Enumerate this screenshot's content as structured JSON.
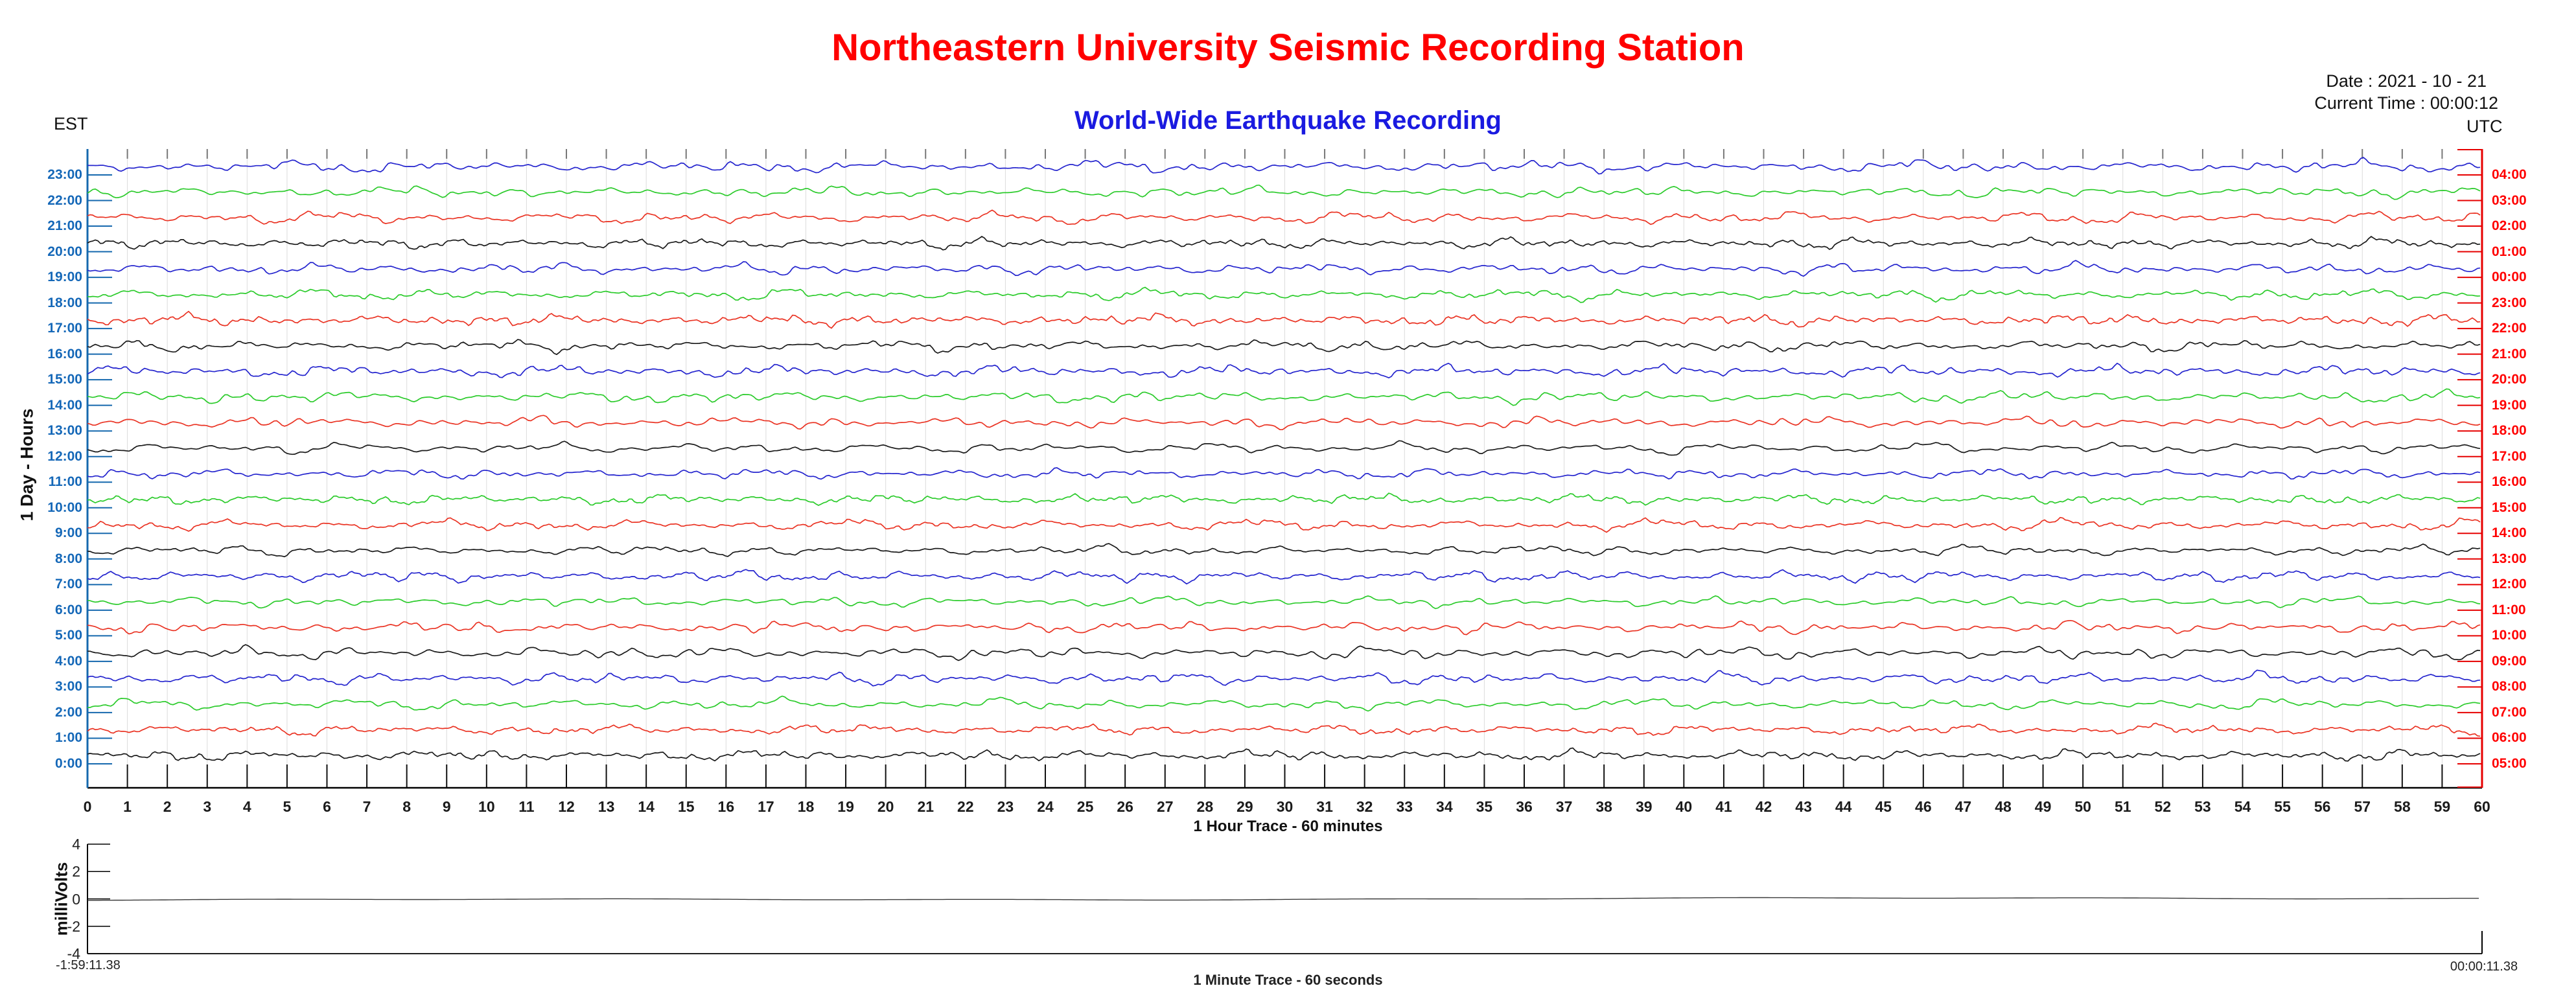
{
  "header": {
    "title": "Northeastern University Seismic Recording Station",
    "subtitle": "World-Wide Earthquake Recording",
    "date": "Date : 2021 - 10 - 21",
    "current_time": "Current Time : 00:00:12",
    "left_timezone": "EST",
    "right_timezone": "UTC"
  },
  "colors": {
    "title": "#FF0000",
    "subtitle": "#1A1AE0",
    "est_labels": "#1568B8",
    "utc_labels": "#FF0000",
    "left_axis": "#1568AE",
    "right_axis": "#E60000",
    "grid": "#DCDCDC",
    "top_tick": "#777777",
    "bottom_tick": "#111111",
    "trace_blue": "#2424CE",
    "trace_green": "#2BCB2B",
    "trace_red": "#EA3323",
    "trace_black": "#1A1A1A"
  },
  "chart_data": [
    {
      "id": "helicorder",
      "type": "line",
      "title": "World-Wide Earthquake Recording",
      "xlabel": "1 Hour Trace - 60 minutes",
      "ylabel": "1 Day - Hours",
      "xlim": [
        0,
        60
      ],
      "x_ticks": [
        0,
        1,
        2,
        3,
        4,
        5,
        6,
        7,
        8,
        9,
        10,
        11,
        12,
        13,
        14,
        15,
        16,
        17,
        18,
        19,
        20,
        21,
        22,
        23,
        24,
        25,
        26,
        27,
        28,
        29,
        30,
        31,
        32,
        33,
        34,
        35,
        36,
        37,
        38,
        39,
        40,
        41,
        42,
        43,
        44,
        45,
        46,
        47,
        48,
        49,
        50,
        51,
        52,
        53,
        54,
        55,
        56,
        57,
        58,
        59,
        60
      ],
      "grid": true,
      "left_axis_timezone": "EST",
      "right_axis_timezone": "UTC",
      "trace_character": "continuous background seismic noise, approx +/-0.3 of row height, no large events",
      "traces": [
        {
          "est": "23:00",
          "utc": "04:00",
          "color": "blue",
          "seed": 7
        },
        {
          "est": "22:00",
          "utc": "03:00",
          "color": "green",
          "seed": 12
        },
        {
          "est": "21:00",
          "utc": "02:00",
          "color": "red",
          "seed": 3
        },
        {
          "est": "20:00",
          "utc": "01:00",
          "color": "black",
          "seed": 21
        },
        {
          "est": "19:00",
          "utc": "00:00",
          "color": "blue",
          "seed": 9
        },
        {
          "est": "18:00",
          "utc": "23:00",
          "color": "green",
          "seed": 14
        },
        {
          "est": "17:00",
          "utc": "22:00",
          "color": "red",
          "seed": 5
        },
        {
          "est": "16:00",
          "utc": "21:00",
          "color": "black",
          "seed": 18
        },
        {
          "est": "15:00",
          "utc": "20:00",
          "color": "blue",
          "seed": 2
        },
        {
          "est": "14:00",
          "utc": "19:00",
          "color": "green",
          "seed": 11
        },
        {
          "est": "13:00",
          "utc": "18:00",
          "color": "red",
          "seed": 23
        },
        {
          "est": "12:00",
          "utc": "17:00",
          "color": "black",
          "seed": 8
        },
        {
          "est": "11:00",
          "utc": "16:00",
          "color": "blue",
          "seed": 16
        },
        {
          "est": "10:00",
          "utc": "15:00",
          "color": "green",
          "seed": 4
        },
        {
          "est": "9:00",
          "utc": "14:00",
          "color": "red",
          "seed": 19
        },
        {
          "est": "8:00",
          "utc": "13:00",
          "color": "black",
          "seed": 10
        },
        {
          "est": "7:00",
          "utc": "12:00",
          "color": "blue",
          "seed": 6
        },
        {
          "est": "6:00",
          "utc": "11:00",
          "color": "green",
          "seed": 22
        },
        {
          "est": "5:00",
          "utc": "10:00",
          "color": "red",
          "seed": 13
        },
        {
          "est": "4:00",
          "utc": "09:00",
          "color": "black",
          "seed": 1
        },
        {
          "est": "3:00",
          "utc": "08:00",
          "color": "blue",
          "seed": 17
        },
        {
          "est": "2:00",
          "utc": "07:00",
          "color": "green",
          "seed": 20
        },
        {
          "est": "1:00",
          "utc": "06:00",
          "color": "red",
          "seed": 15
        },
        {
          "est": "0:00",
          "utc": "05:00",
          "color": "black",
          "seed": 24
        }
      ]
    },
    {
      "id": "minute-trace",
      "type": "line",
      "title": "1 Minute Trace  - 60 seconds",
      "ylabel": "milliVolts",
      "ylim": [
        -4,
        4
      ],
      "y_ticks": [
        4,
        2,
        0,
        -2,
        -4
      ],
      "window_start_label": "-1:59:11.38",
      "window_end_label": "00:00:11.38",
      "series": [
        {
          "name": "current-minute-signal",
          "approx_value_mV": 0,
          "character": "nearly flat line at 0 mV"
        }
      ]
    }
  ]
}
